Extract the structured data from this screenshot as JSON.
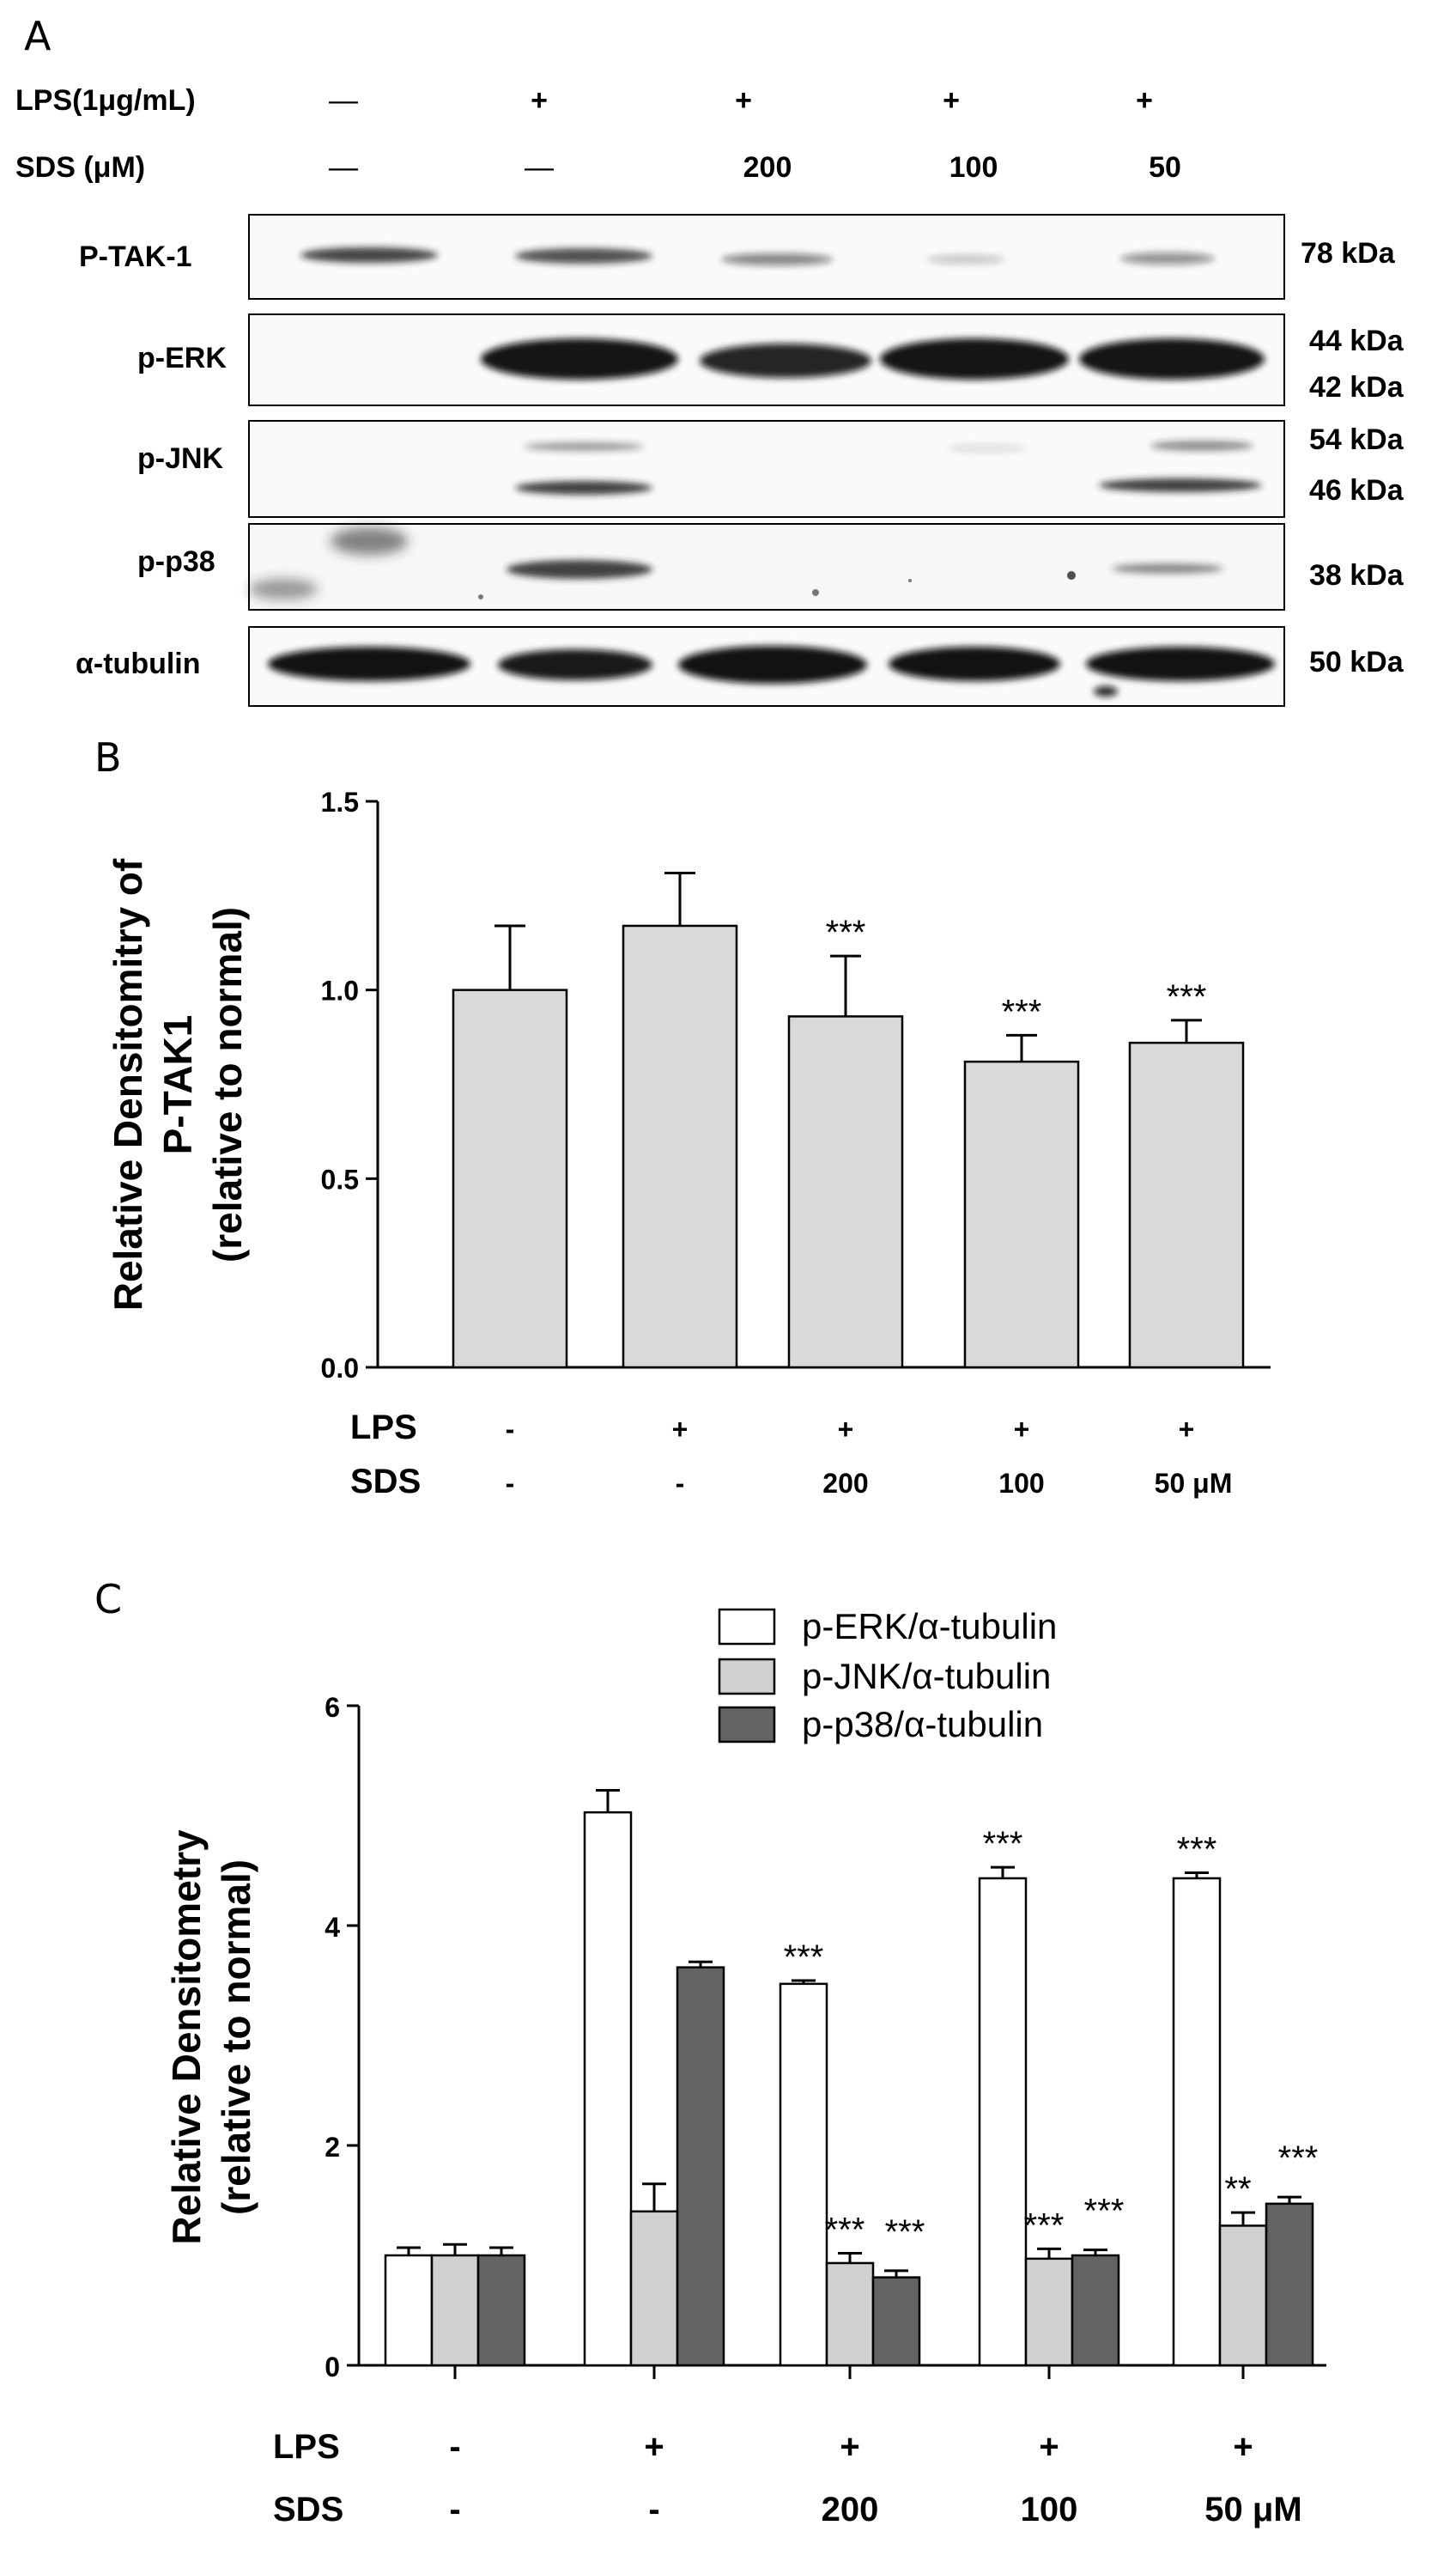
{
  "panel_a": {
    "letter": "A",
    "rows": [
      {
        "label": "LPS(1μg/mL)",
        "values": [
          "—",
          "+",
          "+",
          "+",
          "+"
        ]
      },
      {
        "label": "SDS (μM)",
        "values": [
          "—",
          "—",
          "200",
          "100",
          "50"
        ]
      }
    ],
    "blots": [
      {
        "label": "P-TAK-1",
        "kda": [
          "78 kDa"
        ]
      },
      {
        "label": "p-ERK",
        "kda": [
          "44 kDa",
          "42 kDa"
        ]
      },
      {
        "label": "p-JNK",
        "kda": [
          "54 kDa",
          "46 kDa"
        ]
      },
      {
        "label": "p-p38",
        "kda": [
          "38 kDa"
        ]
      },
      {
        "label": "α-tubulin",
        "kda": [
          "50 kDa"
        ]
      }
    ]
  },
  "chart_data": [
    {
      "panel": "B",
      "type": "bar",
      "ylabel": "Relative Densitomitry of P-TAK1 (relative to normal)",
      "ylim": [
        0,
        1.5
      ],
      "yticks": [
        "0.0",
        "0.5",
        "1.0",
        "1.5"
      ],
      "categories": [
        "1",
        "2",
        "3",
        "4",
        "5"
      ],
      "condition_rows": [
        {
          "label": "LPS",
          "values": [
            "-",
            "+",
            "+",
            "+",
            "+"
          ]
        },
        {
          "label": "SDS",
          "values": [
            "-",
            "-",
            "200",
            "100",
            "50  μM"
          ]
        }
      ],
      "series": [
        {
          "values": [
            1.0,
            1.17,
            0.93,
            0.81,
            0.86
          ],
          "errors": [
            0.17,
            0.14,
            0.16,
            0.07,
            0.06
          ],
          "color": "#d9d9d9"
        }
      ],
      "annotations": [
        "",
        "",
        "***",
        "***",
        "***"
      ]
    },
    {
      "panel": "C",
      "type": "bar",
      "ylabel": "Relative Densitometry (relative to normal)",
      "ylim": [
        0,
        6
      ],
      "yticks": [
        "0",
        "2",
        "4",
        "6"
      ],
      "categories": [
        "1",
        "2",
        "3",
        "4",
        "5"
      ],
      "legend_position": "top-right",
      "condition_rows": [
        {
          "label": "LPS",
          "values": [
            "-",
            "+",
            "+",
            "+",
            "+"
          ]
        },
        {
          "label": "SDS",
          "values": [
            "-",
            "-",
            "200",
            "100",
            "50  μM"
          ]
        }
      ],
      "series": [
        {
          "name": "p-ERK/α-tubulin",
          "values": [
            1.0,
            5.03,
            3.47,
            4.43,
            4.43
          ],
          "errors": [
            0.07,
            0.2,
            0.03,
            0.1,
            0.05
          ],
          "color": "#ffffff",
          "annotations": [
            "",
            "",
            "***",
            "***",
            "***"
          ]
        },
        {
          "name": "p-JNK/α-tubulin",
          "values": [
            1.0,
            1.4,
            0.93,
            0.97,
            1.27
          ],
          "errors": [
            0.1,
            0.25,
            0.09,
            0.09,
            0.12
          ],
          "color": "#d0d0d0",
          "annotations": [
            "",
            "",
            "***",
            "***",
            "**"
          ]
        },
        {
          "name": "p-p38/α-tubulin",
          "values": [
            1.0,
            3.62,
            0.8,
            1.0,
            1.47
          ],
          "errors": [
            0.07,
            0.05,
            0.06,
            0.05,
            0.06
          ],
          "color": "#636363",
          "annotations": [
            "",
            "",
            "***",
            "***",
            "***"
          ]
        }
      ]
    }
  ]
}
